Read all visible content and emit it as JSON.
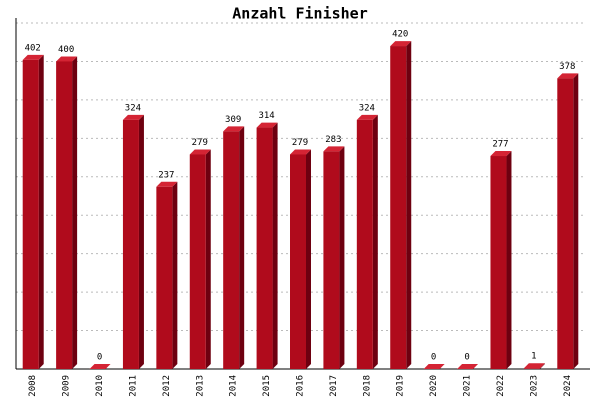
{
  "chart_data": {
    "type": "bar",
    "title": "Anzahl Finisher",
    "categories": [
      "2008",
      "2009",
      "2010",
      "2011",
      "2012",
      "2013",
      "2014",
      "2015",
      "2016",
      "2017",
      "2018",
      "2019",
      "2020",
      "2021",
      "2022",
      "2023",
      "2024"
    ],
    "values": [
      402,
      400,
      0,
      324,
      237,
      279,
      309,
      314,
      279,
      283,
      324,
      420,
      0,
      0,
      277,
      1,
      378
    ],
    "color": "#b00b1c",
    "ylim": [
      0,
      450
    ],
    "yticks": [
      0,
      50,
      100,
      150,
      200,
      250,
      300,
      350,
      400,
      450
    ],
    "grid": true
  }
}
